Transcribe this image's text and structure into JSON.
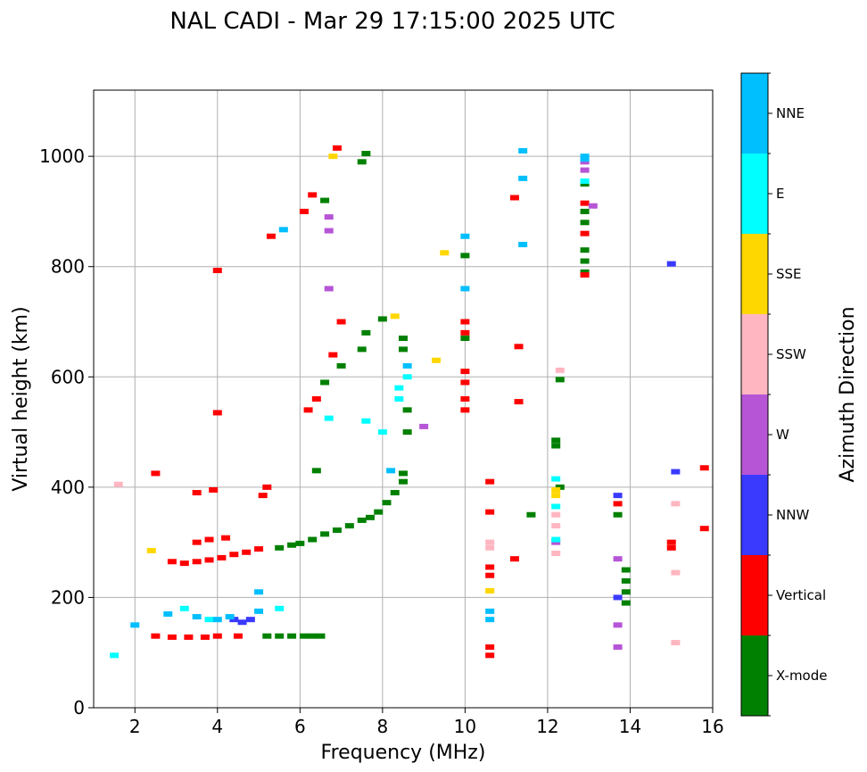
{
  "chart_data": {
    "type": "scatter",
    "title": "NAL CADI - Mar 29 17:15:00 2025 UTC",
    "xlabel": "Frequency (MHz)",
    "ylabel": "Virtual height (km)",
    "xlim": [
      1,
      16
    ],
    "ylim": [
      0,
      1120
    ],
    "xticks": [
      "2",
      "4",
      "6",
      "8",
      "10",
      "12",
      "14",
      "16"
    ],
    "xtick_values": [
      2,
      4,
      6,
      8,
      10,
      12,
      14,
      16
    ],
    "yticks": [
      "0",
      "200",
      "400",
      "600",
      "800",
      "1000"
    ],
    "ytick_values": [
      0,
      200,
      400,
      600,
      800,
      1000
    ],
    "grid": true,
    "colorbar": {
      "label": "Azimuth Direction",
      "categories": [
        "X-mode",
        "Vertical",
        "NNW",
        "W",
        "SSW",
        "SSE",
        "E",
        "NNE"
      ],
      "colors": [
        "#008000",
        "#ff0000",
        "#3a3aff",
        "#b655d6",
        "#ffb6c1",
        "#ffd700",
        "#00ffff",
        "#00bfff"
      ]
    },
    "series": [
      {
        "name": "X-mode",
        "points": [
          [
            5.2,
            130
          ],
          [
            5.5,
            130
          ],
          [
            5.8,
            130
          ],
          [
            6.1,
            130
          ],
          [
            6.3,
            130
          ],
          [
            6.5,
            130
          ],
          [
            5.5,
            290
          ],
          [
            5.8,
            295
          ],
          [
            6.0,
            298
          ],
          [
            6.3,
            305
          ],
          [
            6.6,
            315
          ],
          [
            6.9,
            322
          ],
          [
            7.2,
            330
          ],
          [
            7.5,
            340
          ],
          [
            7.7,
            345
          ],
          [
            7.9,
            355
          ],
          [
            8.1,
            372
          ],
          [
            8.3,
            390
          ],
          [
            8.5,
            410
          ],
          [
            8.5,
            425
          ],
          [
            8.6,
            500
          ],
          [
            8.6,
            540
          ],
          [
            8.5,
            650
          ],
          [
            8.5,
            670
          ],
          [
            8.0,
            705
          ],
          [
            7.6,
            680
          ],
          [
            7.5,
            650
          ],
          [
            7.0,
            620
          ],
          [
            6.6,
            590
          ],
          [
            6.4,
            430
          ],
          [
            7.5,
            990
          ],
          [
            7.6,
            1005
          ],
          [
            6.6,
            920
          ],
          [
            10.0,
            820
          ],
          [
            12.2,
            475
          ],
          [
            12.2,
            485
          ],
          [
            12.9,
            790
          ],
          [
            12.9,
            810
          ],
          [
            12.9,
            830
          ],
          [
            12.9,
            880
          ],
          [
            12.9,
            900
          ],
          [
            12.9,
            950
          ],
          [
            13.7,
            350
          ],
          [
            13.9,
            190
          ],
          [
            13.9,
            210
          ],
          [
            13.9,
            230
          ],
          [
            13.9,
            250
          ],
          [
            12.3,
            400
          ],
          [
            12.3,
            595
          ],
          [
            11.6,
            350
          ],
          [
            10.0,
            670
          ]
        ]
      },
      {
        "name": "Vertical",
        "points": [
          [
            2.5,
            130
          ],
          [
            2.9,
            128
          ],
          [
            3.3,
            128
          ],
          [
            3.7,
            128
          ],
          [
            4.0,
            130
          ],
          [
            4.5,
            130
          ],
          [
            2.9,
            265
          ],
          [
            3.2,
            262
          ],
          [
            3.5,
            265
          ],
          [
            3.8,
            268
          ],
          [
            4.1,
            272
          ],
          [
            4.4,
            278
          ],
          [
            4.7,
            282
          ],
          [
            5.0,
            288
          ],
          [
            3.5,
            300
          ],
          [
            3.8,
            305
          ],
          [
            4.2,
            308
          ],
          [
            3.5,
            390
          ],
          [
            3.9,
            395
          ],
          [
            5.1,
            385
          ],
          [
            5.2,
            400
          ],
          [
            6.2,
            540
          ],
          [
            6.4,
            560
          ],
          [
            7.0,
            700
          ],
          [
            6.8,
            640
          ],
          [
            6.9,
            1015
          ],
          [
            6.1,
            900
          ],
          [
            6.3,
            930
          ],
          [
            5.3,
            855
          ],
          [
            4.0,
            793
          ],
          [
            4.0,
            535
          ],
          [
            2.5,
            425
          ],
          [
            10.0,
            540
          ],
          [
            10.0,
            560
          ],
          [
            10.0,
            590
          ],
          [
            10.0,
            610
          ],
          [
            10.0,
            680
          ],
          [
            10.0,
            700
          ],
          [
            10.6,
            95
          ],
          [
            10.6,
            110
          ],
          [
            10.6,
            240
          ],
          [
            10.6,
            255
          ],
          [
            10.6,
            355
          ],
          [
            10.6,
            410
          ],
          [
            11.3,
            555
          ],
          [
            11.3,
            655
          ],
          [
            11.2,
            270
          ],
          [
            11.2,
            925
          ],
          [
            12.9,
            785
          ],
          [
            12.9,
            860
          ],
          [
            12.9,
            915
          ],
          [
            13.7,
            370
          ],
          [
            15.0,
            290
          ],
          [
            15.0,
            300
          ],
          [
            15.8,
            325
          ],
          [
            15.8,
            435
          ]
        ]
      },
      {
        "name": "NNW",
        "points": [
          [
            4.4,
            160
          ],
          [
            4.6,
            155
          ],
          [
            4.8,
            160
          ],
          [
            13.7,
            385
          ],
          [
            13.7,
            200
          ],
          [
            15.1,
            428
          ],
          [
            15.0,
            805
          ]
        ]
      },
      {
        "name": "W",
        "points": [
          [
            6.7,
            760
          ],
          [
            6.7,
            865
          ],
          [
            6.7,
            890
          ],
          [
            12.9,
            975
          ],
          [
            12.9,
            990
          ],
          [
            13.1,
            910
          ],
          [
            12.2,
            300
          ],
          [
            13.7,
            270
          ],
          [
            13.7,
            150
          ],
          [
            13.7,
            110
          ],
          [
            9.0,
            510
          ]
        ]
      },
      {
        "name": "SSW",
        "points": [
          [
            1.6,
            405
          ],
          [
            10.6,
            300
          ],
          [
            10.6,
            290
          ],
          [
            12.2,
            280
          ],
          [
            12.2,
            330
          ],
          [
            12.2,
            350
          ],
          [
            12.3,
            612
          ],
          [
            15.1,
            370
          ],
          [
            15.1,
            245
          ],
          [
            15.1,
            118
          ]
        ]
      },
      {
        "name": "SSE",
        "points": [
          [
            6.8,
            1000
          ],
          [
            8.3,
            710
          ],
          [
            9.3,
            630
          ],
          [
            9.5,
            825
          ],
          [
            10.6,
            212
          ],
          [
            12.2,
            385
          ],
          [
            12.2,
            395
          ],
          [
            2.4,
            285
          ]
        ]
      },
      {
        "name": "E",
        "points": [
          [
            1.5,
            95
          ],
          [
            3.2,
            180
          ],
          [
            3.8,
            160
          ],
          [
            5.5,
            180
          ],
          [
            6.7,
            525
          ],
          [
            7.6,
            520
          ],
          [
            8.0,
            500
          ],
          [
            8.4,
            560
          ],
          [
            8.4,
            580
          ],
          [
            8.6,
            600
          ],
          [
            12.2,
            415
          ],
          [
            12.2,
            365
          ],
          [
            12.2,
            305
          ],
          [
            12.9,
            955
          ]
        ]
      },
      {
        "name": "NNE",
        "points": [
          [
            2.0,
            150
          ],
          [
            2.8,
            170
          ],
          [
            3.5,
            165
          ],
          [
            4.0,
            160
          ],
          [
            4.3,
            165
          ],
          [
            5.0,
            175
          ],
          [
            5.6,
            867
          ],
          [
            5.0,
            210
          ],
          [
            8.2,
            430
          ],
          [
            8.6,
            620
          ],
          [
            10.0,
            760
          ],
          [
            10.0,
            855
          ],
          [
            10.6,
            160
          ],
          [
            10.6,
            175
          ],
          [
            11.4,
            840
          ],
          [
            11.4,
            960
          ],
          [
            11.4,
            1010
          ],
          [
            12.9,
            1000
          ],
          [
            12.9,
            995
          ]
        ]
      }
    ]
  }
}
